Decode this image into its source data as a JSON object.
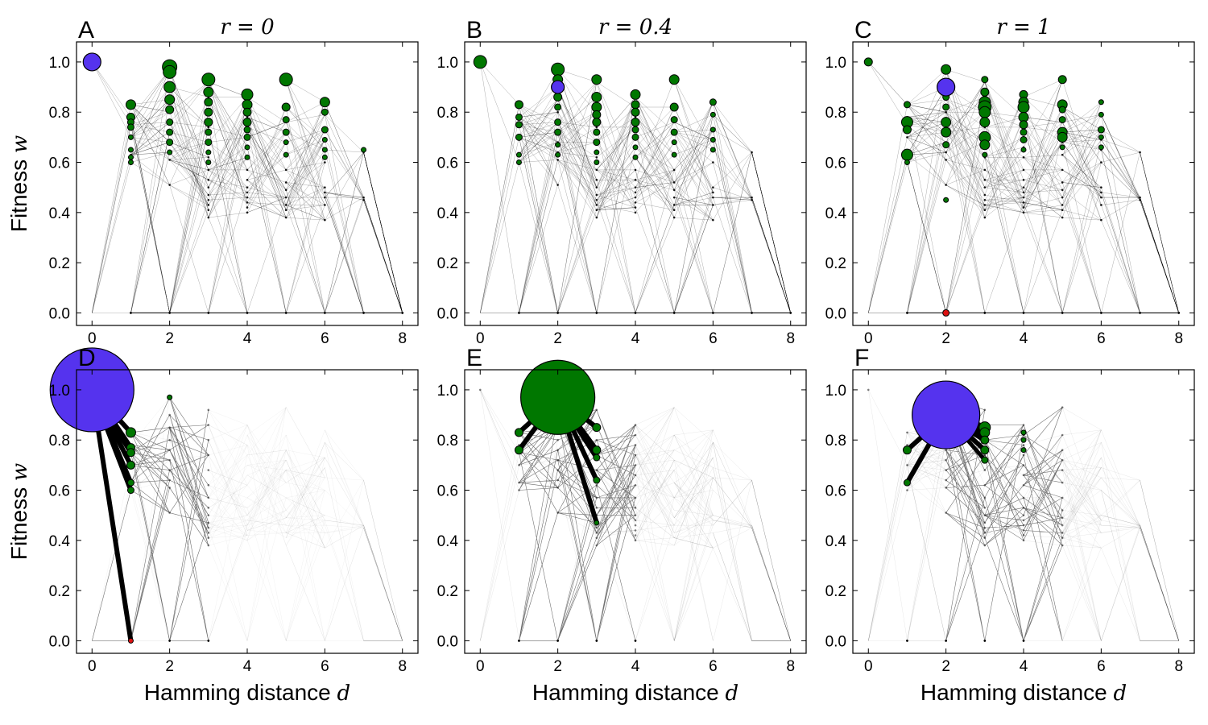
{
  "colors": {
    "blue": "#5533ee",
    "green": "#007700",
    "red": "#dd1111",
    "edge": "#000000"
  },
  "chart_data": [
    {
      "type": "scatter",
      "panel_label": "A",
      "title": "r = 0",
      "title_letter": "r",
      "title_value": "0",
      "xlabel": "",
      "ylabel": "Fitness",
      "ylabel_var": "w",
      "xlim": [
        -0.4,
        8.4
      ],
      "ylim": [
        -0.05,
        1.08
      ],
      "xticks": [
        "0",
        "2",
        "4",
        "6",
        "8"
      ],
      "yticks": [
        "0.0",
        "0.2",
        "0.4",
        "0.6",
        "0.8",
        "1.0"
      ],
      "highlight": {
        "d": 0,
        "w": 1.0,
        "size": 11,
        "color": "blue"
      },
      "green_nodes": [
        [
          2,
          0.98,
          9
        ],
        [
          2,
          0.96,
          8
        ],
        [
          2,
          0.9,
          7
        ],
        [
          2,
          0.85,
          6
        ],
        [
          2,
          0.81,
          5
        ],
        [
          2,
          0.76,
          4
        ],
        [
          2,
          0.72,
          4
        ],
        [
          2,
          0.68,
          4
        ],
        [
          2,
          0.64,
          3
        ],
        [
          3,
          0.93,
          8
        ],
        [
          3,
          0.88,
          6
        ],
        [
          3,
          0.84,
          5
        ],
        [
          3,
          0.8,
          5
        ],
        [
          3,
          0.76,
          5
        ],
        [
          3,
          0.72,
          4
        ],
        [
          3,
          0.68,
          4
        ],
        [
          3,
          0.64,
          3
        ],
        [
          3,
          0.6,
          3
        ],
        [
          4,
          0.87,
          7
        ],
        [
          4,
          0.83,
          6
        ],
        [
          4,
          0.8,
          5
        ],
        [
          4,
          0.76,
          5
        ],
        [
          4,
          0.73,
          4
        ],
        [
          4,
          0.7,
          4
        ],
        [
          4,
          0.66,
          3
        ],
        [
          4,
          0.62,
          3
        ],
        [
          5,
          0.93,
          8
        ],
        [
          5,
          0.82,
          5
        ],
        [
          5,
          0.77,
          4
        ],
        [
          5,
          0.72,
          4
        ],
        [
          5,
          0.68,
          3
        ],
        [
          5,
          0.63,
          3
        ],
        [
          6,
          0.84,
          6
        ],
        [
          6,
          0.8,
          4
        ],
        [
          6,
          0.73,
          4
        ],
        [
          6,
          0.69,
          3
        ],
        [
          6,
          0.65,
          3
        ],
        [
          6,
          0.62,
          3
        ],
        [
          1,
          0.83,
          6
        ],
        [
          1,
          0.78,
          5
        ],
        [
          1,
          0.76,
          4
        ],
        [
          1,
          0.74,
          4
        ],
        [
          1,
          0.7,
          3
        ],
        [
          1,
          0.65,
          3
        ],
        [
          1,
          0.62,
          3
        ],
        [
          1,
          0.6,
          3
        ],
        [
          7,
          0.65,
          3
        ]
      ],
      "minor_nodes_d": [
        1,
        2,
        3,
        4,
        5,
        6,
        7
      ],
      "zero_nodes_d": [
        1,
        2,
        3,
        4,
        5,
        6,
        7,
        8
      ],
      "network_density": 1.0,
      "focus": null
    },
    {
      "type": "scatter",
      "panel_label": "B",
      "title": "r = 0.4",
      "title_letter": "r",
      "title_value": "0.4",
      "xlabel": "",
      "ylabel": "",
      "ylabel_var": "",
      "xlim": [
        -0.4,
        8.4
      ],
      "ylim": [
        -0.05,
        1.08
      ],
      "xticks": [
        "0",
        "2",
        "4",
        "6",
        "8"
      ],
      "yticks": [
        "0.0",
        "0.2",
        "0.4",
        "0.6",
        "0.8",
        "1.0"
      ],
      "highlight": {
        "d": 2,
        "w": 0.9,
        "size": 8,
        "color": "blue"
      },
      "green_nodes": [
        [
          0,
          1.0,
          8
        ],
        [
          2,
          0.97,
          8
        ],
        [
          2,
          0.93,
          6
        ],
        [
          2,
          0.86,
          5
        ],
        [
          2,
          0.82,
          4
        ],
        [
          2,
          0.76,
          4
        ],
        [
          2,
          0.72,
          4
        ],
        [
          2,
          0.67,
          3
        ],
        [
          2,
          0.63,
          3
        ],
        [
          3,
          0.93,
          6
        ],
        [
          3,
          0.86,
          6
        ],
        [
          3,
          0.82,
          6
        ],
        [
          3,
          0.79,
          5
        ],
        [
          3,
          0.76,
          5
        ],
        [
          3,
          0.72,
          4
        ],
        [
          3,
          0.68,
          4
        ],
        [
          3,
          0.64,
          3
        ],
        [
          3,
          0.6,
          3
        ],
        [
          4,
          0.87,
          6
        ],
        [
          4,
          0.83,
          5
        ],
        [
          4,
          0.8,
          5
        ],
        [
          4,
          0.76,
          5
        ],
        [
          4,
          0.73,
          4
        ],
        [
          4,
          0.7,
          4
        ],
        [
          4,
          0.66,
          3
        ],
        [
          4,
          0.62,
          3
        ],
        [
          5,
          0.93,
          6
        ],
        [
          5,
          0.82,
          5
        ],
        [
          5,
          0.77,
          4
        ],
        [
          5,
          0.72,
          4
        ],
        [
          5,
          0.68,
          3
        ],
        [
          5,
          0.63,
          3
        ],
        [
          6,
          0.84,
          4
        ],
        [
          6,
          0.79,
          3
        ],
        [
          6,
          0.73,
          3
        ],
        [
          6,
          0.69,
          3
        ],
        [
          6,
          0.65,
          3
        ],
        [
          1,
          0.83,
          5
        ],
        [
          1,
          0.78,
          4
        ],
        [
          1,
          0.75,
          4
        ],
        [
          1,
          0.7,
          4
        ],
        [
          1,
          0.63,
          3
        ],
        [
          1,
          0.6,
          3
        ]
      ],
      "minor_nodes_d": [
        1,
        2,
        3,
        4,
        5,
        6,
        7
      ],
      "zero_nodes_d": [
        1,
        2,
        3,
        4,
        5,
        6,
        7,
        8
      ],
      "network_density": 1.0,
      "focus": null
    },
    {
      "type": "scatter",
      "panel_label": "C",
      "title": "r = 1",
      "title_letter": "r",
      "title_value": "1",
      "xlabel": "",
      "ylabel": "",
      "ylabel_var": "",
      "xlim": [
        -0.4,
        8.4
      ],
      "ylim": [
        -0.05,
        1.08
      ],
      "xticks": [
        "0",
        "2",
        "4",
        "6",
        "8"
      ],
      "yticks": [
        "0.0",
        "0.2",
        "0.4",
        "0.6",
        "0.8",
        "1.0"
      ],
      "highlight": {
        "d": 2,
        "w": 0.9,
        "size": 11,
        "color": "blue"
      },
      "green_nodes": [
        [
          0,
          1.0,
          5
        ],
        [
          1,
          0.83,
          4
        ],
        [
          1,
          0.76,
          7
        ],
        [
          1,
          0.73,
          5
        ],
        [
          1,
          0.63,
          7
        ],
        [
          1,
          0.6,
          3
        ],
        [
          2,
          0.97,
          6
        ],
        [
          2,
          0.86,
          4
        ],
        [
          2,
          0.82,
          4
        ],
        [
          2,
          0.76,
          6
        ],
        [
          2,
          0.72,
          6
        ],
        [
          2,
          0.67,
          4
        ],
        [
          3,
          0.93,
          4
        ],
        [
          3,
          0.88,
          5
        ],
        [
          3,
          0.84,
          7
        ],
        [
          3,
          0.82,
          8
        ],
        [
          3,
          0.8,
          7
        ],
        [
          3,
          0.76,
          6
        ],
        [
          3,
          0.7,
          7
        ],
        [
          3,
          0.67,
          6
        ],
        [
          3,
          0.63,
          3
        ],
        [
          4,
          0.87,
          5
        ],
        [
          4,
          0.84,
          6
        ],
        [
          4,
          0.82,
          7
        ],
        [
          4,
          0.78,
          6
        ],
        [
          4,
          0.75,
          5
        ],
        [
          4,
          0.72,
          4
        ],
        [
          4,
          0.69,
          4
        ],
        [
          4,
          0.65,
          3
        ],
        [
          5,
          0.93,
          5
        ],
        [
          5,
          0.83,
          6
        ],
        [
          5,
          0.81,
          4
        ],
        [
          5,
          0.77,
          4
        ],
        [
          5,
          0.72,
          6
        ],
        [
          5,
          0.7,
          6
        ],
        [
          5,
          0.66,
          3
        ],
        [
          6,
          0.84,
          3
        ],
        [
          6,
          0.79,
          3
        ],
        [
          6,
          0.73,
          4
        ],
        [
          6,
          0.7,
          3
        ],
        [
          6,
          0.66,
          3
        ],
        [
          2,
          0.45,
          3
        ]
      ],
      "minor_nodes_d": [
        1,
        2,
        3,
        4,
        5,
        6,
        7
      ],
      "zero_nodes_d": [
        1,
        2,
        3,
        4,
        5,
        6,
        7,
        8
      ],
      "red_nodes": [
        [
          2,
          0.0,
          4
        ]
      ],
      "network_density": 1.0,
      "focus": null
    },
    {
      "type": "scatter",
      "panel_label": "D",
      "title": "",
      "title_letter": "",
      "title_value": "",
      "xlabel": "Hamming distance",
      "xlabel_var": "d",
      "ylabel": "Fitness",
      "ylabel_var": "w",
      "xlim": [
        -0.4,
        8.4
      ],
      "ylim": [
        -0.05,
        1.08
      ],
      "xticks": [
        "0",
        "2",
        "4",
        "6",
        "8"
      ],
      "yticks": [
        "0.0",
        "0.2",
        "0.4",
        "0.6",
        "0.8",
        "1.0"
      ],
      "highlight": {
        "d": 0,
        "w": 1.0,
        "size": 52,
        "color": "blue"
      },
      "green_nodes": [
        [
          1,
          0.83,
          6
        ],
        [
          1,
          0.77,
          5
        ],
        [
          1,
          0.75,
          5
        ],
        [
          1,
          0.7,
          5
        ],
        [
          1,
          0.63,
          4
        ],
        [
          1,
          0.6,
          4
        ],
        [
          2,
          0.97,
          3
        ]
      ],
      "red_nodes": [
        [
          1,
          0.0,
          3
        ]
      ],
      "thick_edges": [
        [
          0,
          1.0,
          1,
          0.83,
          6
        ],
        [
          0,
          1.0,
          1,
          0.77,
          6
        ],
        [
          0,
          1.0,
          1,
          0.75,
          6
        ],
        [
          0,
          1.0,
          1,
          0.7,
          6
        ],
        [
          0,
          1.0,
          1,
          0.63,
          6
        ],
        [
          0,
          1.0,
          1,
          0.6,
          6
        ],
        [
          0,
          1.0,
          1,
          0.0,
          6
        ]
      ],
      "minor_nodes_d": [
        1,
        2,
        3
      ],
      "zero_nodes_d": [
        2,
        3
      ],
      "network_density": 0.18,
      "focus": {
        "d": 1
      }
    },
    {
      "type": "scatter",
      "panel_label": "E",
      "title": "",
      "title_letter": "",
      "title_value": "",
      "xlabel": "Hamming distance",
      "xlabel_var": "d",
      "ylabel": "",
      "ylabel_var": "",
      "xlim": [
        -0.4,
        8.4
      ],
      "ylim": [
        -0.05,
        1.08
      ],
      "xticks": [
        "0",
        "2",
        "4",
        "6",
        "8"
      ],
      "yticks": [
        "0.0",
        "0.2",
        "0.4",
        "0.6",
        "0.8",
        "1.0"
      ],
      "highlight": {
        "d": 2,
        "w": 0.97,
        "size": 46,
        "color": "green"
      },
      "green_nodes": [
        [
          1,
          0.83,
          5
        ],
        [
          1,
          0.76,
          5
        ],
        [
          3,
          0.85,
          5
        ],
        [
          3,
          0.76,
          5
        ],
        [
          3,
          0.73,
          4
        ],
        [
          3,
          0.64,
          4
        ],
        [
          3,
          0.47,
          3
        ]
      ],
      "thick_edges": [
        [
          2,
          0.97,
          1,
          0.83,
          6
        ],
        [
          2,
          0.97,
          1,
          0.76,
          6
        ],
        [
          2,
          0.97,
          3,
          0.85,
          6
        ],
        [
          2,
          0.97,
          3,
          0.76,
          6
        ],
        [
          2,
          0.97,
          3,
          0.73,
          6
        ],
        [
          2,
          0.97,
          3,
          0.64,
          6
        ],
        [
          2,
          0.97,
          3,
          0.47,
          6
        ]
      ],
      "minor_nodes_d": [
        0,
        1,
        2,
        3,
        4
      ],
      "zero_nodes_d": [
        1,
        2,
        3,
        4
      ],
      "network_density": 0.3,
      "focus": {
        "d": 2
      }
    },
    {
      "type": "scatter",
      "panel_label": "F",
      "title": "",
      "title_letter": "",
      "title_value": "",
      "xlabel": "Hamming distance",
      "xlabel_var": "d",
      "ylabel": "",
      "ylabel_var": "",
      "xlim": [
        -0.4,
        8.4
      ],
      "ylim": [
        -0.05,
        1.08
      ],
      "xticks": [
        "0",
        "2",
        "4",
        "6",
        "8"
      ],
      "yticks": [
        "0.0",
        "0.2",
        "0.4",
        "0.6",
        "0.8",
        "1.0"
      ],
      "highlight": {
        "d": 2,
        "w": 0.9,
        "size": 42,
        "color": "blue"
      },
      "green_nodes": [
        [
          1,
          0.76,
          5
        ],
        [
          1,
          0.63,
          4
        ],
        [
          3,
          0.85,
          7
        ],
        [
          3,
          0.83,
          6
        ],
        [
          3,
          0.8,
          5
        ],
        [
          3,
          0.76,
          5
        ],
        [
          3,
          0.72,
          4
        ],
        [
          4,
          0.83,
          3
        ],
        [
          4,
          0.8,
          3
        ],
        [
          4,
          0.76,
          3
        ]
      ],
      "thick_edges": [
        [
          2,
          0.9,
          1,
          0.76,
          6
        ],
        [
          2,
          0.9,
          1,
          0.63,
          6
        ],
        [
          2,
          0.9,
          3,
          0.85,
          8
        ],
        [
          2,
          0.9,
          3,
          0.83,
          8
        ],
        [
          2,
          0.9,
          3,
          0.8,
          7
        ],
        [
          2,
          0.9,
          3,
          0.76,
          6
        ],
        [
          2,
          0.9,
          3,
          0.72,
          5
        ]
      ],
      "minor_nodes_d": [
        0,
        1,
        2,
        3,
        4,
        5
      ],
      "zero_nodes_d": [
        1,
        2,
        3,
        4
      ],
      "network_density": 0.3,
      "focus": {
        "d": 3
      }
    }
  ]
}
